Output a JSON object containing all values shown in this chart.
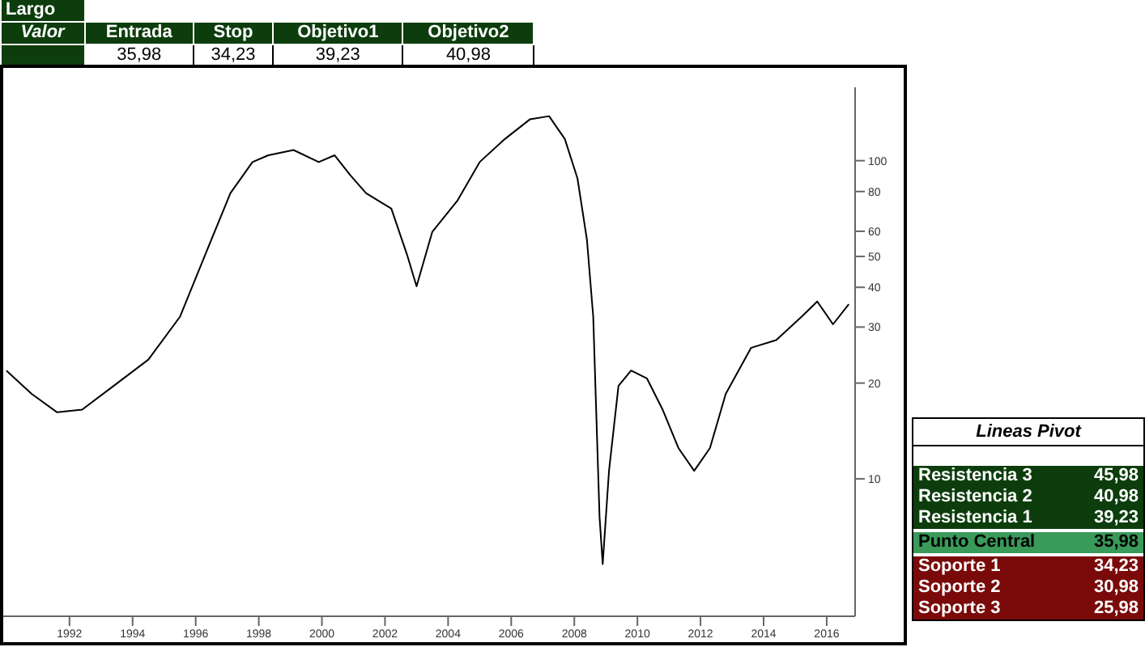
{
  "chart_data": {
    "type": "line",
    "x": [
      1990.0,
      1990.8,
      1991.6,
      1992.4,
      1993.4,
      1994.5,
      1995.5,
      1996.3,
      1997.1,
      1997.8,
      1998.3,
      1999.1,
      1999.9,
      2000.4,
      2000.9,
      2001.4,
      2002.2,
      2002.7,
      2003.0,
      2003.5,
      2004.3,
      2005.0,
      2005.8,
      2006.6,
      2007.2,
      2007.7,
      2008.1,
      2008.4,
      2008.6,
      2008.8,
      2008.9,
      2009.1,
      2009.4,
      2009.8,
      2010.3,
      2010.8,
      2011.3,
      2011.8,
      2012.3,
      2012.8,
      2013.6,
      2014.4,
      2015.2,
      2015.7,
      2016.2,
      2016.7
    ],
    "series": [
      {
        "color": "#000000",
        "values": [
          21.9,
          18.5,
          16.2,
          16.5,
          19.6,
          23.7,
          32.3,
          50.6,
          79,
          99,
          104,
          108,
          99,
          104,
          90,
          79,
          70.7,
          50.6,
          40.3,
          59.8,
          75,
          99,
          117,
          135,
          138,
          117,
          88,
          56.5,
          32.3,
          7.6,
          5.4,
          10.6,
          19.6,
          21.9,
          20.7,
          16.5,
          12.5,
          10.6,
          12.5,
          18.5,
          25.8,
          27.3,
          32.3,
          36.1,
          30.6,
          35.4
        ]
      }
    ],
    "log": true,
    "ylim": [
      3.7,
      170
    ],
    "yticks": [
      10,
      20,
      30,
      40,
      50,
      60,
      80,
      100
    ],
    "xlim": [
      1989.9,
      2016.9
    ],
    "xticks": [
      1992,
      1994,
      1996,
      1998,
      2000,
      2002,
      2004,
      2006,
      2008,
      2010,
      2012,
      2014,
      2016
    ],
    "grid": false,
    "legend": false,
    "annotations": [
      "Largo",
      "Valor",
      "Entrada",
      "Stop",
      "Objetivo1",
      "Objetivo2",
      "35,98",
      "34,23",
      "39,23",
      "40,98",
      "Lineas Pivot",
      "Resistencia 3",
      "45,98",
      "Resistencia 2",
      "40,98",
      "Resistencia 1",
      "39,23",
      "Punto Central",
      "35,98",
      "Soporte 1",
      "34,23",
      "Soporte 2",
      "30,98",
      "Soporte 3",
      "25,98"
    ]
  }
}
